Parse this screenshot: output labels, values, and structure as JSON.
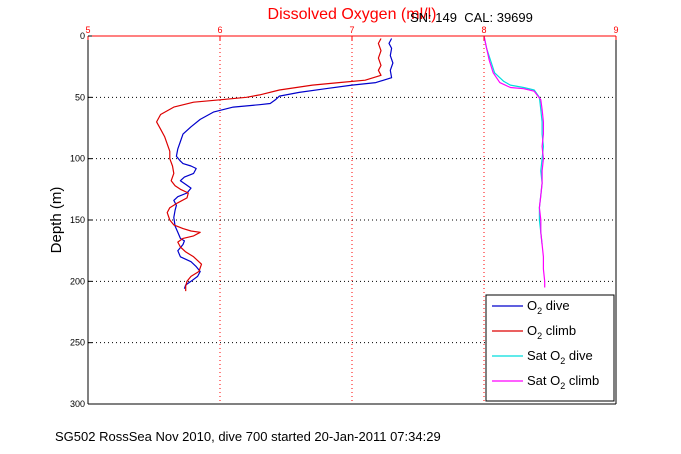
{
  "chart_data": {
    "type": "line",
    "title": "Dissolved Oxygen (ml/l)",
    "title_color": "#ff0000",
    "annotation": "SN: 149  CAL: 39699",
    "ylabel": "Depth (m)",
    "xlabel": "",
    "xlim": [
      5,
      9
    ],
    "ylim": [
      0,
      300
    ],
    "y_reversed": true,
    "x_axis_position": "top",
    "x_axis_color": "#ff0000",
    "x_ticks": [
      "5",
      "6",
      "7",
      "8",
      "9"
    ],
    "y_ticks": [
      "0",
      "50",
      "100",
      "150",
      "200",
      "250",
      "300"
    ],
    "grid": "dotted",
    "legend_position": "bottom-right",
    "series": [
      {
        "name": "O2 dive",
        "legend_main": "O",
        "legend_sub": "2",
        "legend_suffix": " dive",
        "color": "#0000cc",
        "points": [
          [
            7.3,
            2
          ],
          [
            7.28,
            6
          ],
          [
            7.3,
            10
          ],
          [
            7.29,
            16
          ],
          [
            7.31,
            22
          ],
          [
            7.29,
            28
          ],
          [
            7.3,
            34
          ],
          [
            7.18,
            38
          ],
          [
            7.0,
            40
          ],
          [
            6.8,
            43
          ],
          [
            6.6,
            46
          ],
          [
            6.45,
            49
          ],
          [
            6.42,
            52
          ],
          [
            6.38,
            55
          ],
          [
            6.3,
            56
          ],
          [
            6.1,
            58
          ],
          [
            5.95,
            62
          ],
          [
            5.85,
            68
          ],
          [
            5.78,
            74
          ],
          [
            5.72,
            80
          ],
          [
            5.7,
            86
          ],
          [
            5.68,
            92
          ],
          [
            5.67,
            98
          ],
          [
            5.7,
            102
          ],
          [
            5.72,
            104
          ],
          [
            5.78,
            106
          ],
          [
            5.82,
            108
          ],
          [
            5.8,
            112
          ],
          [
            5.73,
            115
          ],
          [
            5.7,
            118
          ],
          [
            5.74,
            121
          ],
          [
            5.78,
            124
          ],
          [
            5.75,
            128
          ],
          [
            5.68,
            131
          ],
          [
            5.65,
            134
          ],
          [
            5.67,
            138
          ],
          [
            5.66,
            142
          ],
          [
            5.65,
            148
          ],
          [
            5.66,
            155
          ],
          [
            5.68,
            160
          ],
          [
            5.7,
            165
          ],
          [
            5.73,
            167
          ],
          [
            5.72,
            170
          ],
          [
            5.68,
            175
          ],
          [
            5.7,
            180
          ],
          [
            5.78,
            184
          ],
          [
            5.82,
            188
          ],
          [
            5.85,
            192
          ],
          [
            5.83,
            196
          ],
          [
            5.78,
            200
          ],
          [
            5.74,
            203
          ],
          [
            5.73,
            206
          ]
        ]
      },
      {
        "name": "O2 climb",
        "legend_main": "O",
        "legend_sub": "2",
        "legend_suffix": " climb",
        "color": "#dd0000",
        "points": [
          [
            7.22,
            2
          ],
          [
            7.2,
            6
          ],
          [
            7.22,
            12
          ],
          [
            7.2,
            18
          ],
          [
            7.22,
            24
          ],
          [
            7.2,
            28
          ],
          [
            7.22,
            32
          ],
          [
            7.1,
            36
          ],
          [
            6.9,
            38
          ],
          [
            6.7,
            40
          ],
          [
            6.45,
            44
          ],
          [
            6.3,
            48
          ],
          [
            6.2,
            50
          ],
          [
            6.0,
            52
          ],
          [
            5.8,
            54
          ],
          [
            5.65,
            58
          ],
          [
            5.55,
            64
          ],
          [
            5.52,
            70
          ],
          [
            5.55,
            76
          ],
          [
            5.58,
            82
          ],
          [
            5.6,
            88
          ],
          [
            5.62,
            94
          ],
          [
            5.62,
            100
          ],
          [
            5.64,
            106
          ],
          [
            5.65,
            112
          ],
          [
            5.63,
            118
          ],
          [
            5.66,
            122
          ],
          [
            5.7,
            125
          ],
          [
            5.76,
            128
          ],
          [
            5.75,
            132
          ],
          [
            5.68,
            136
          ],
          [
            5.62,
            140
          ],
          [
            5.6,
            144
          ],
          [
            5.62,
            150
          ],
          [
            5.65,
            154
          ],
          [
            5.72,
            157
          ],
          [
            5.78,
            159
          ],
          [
            5.85,
            160
          ],
          [
            5.8,
            163
          ],
          [
            5.72,
            165
          ],
          [
            5.68,
            168
          ],
          [
            5.7,
            172
          ],
          [
            5.74,
            176
          ],
          [
            5.8,
            180
          ],
          [
            5.86,
            186
          ],
          [
            5.84,
            192
          ],
          [
            5.78,
            196
          ],
          [
            5.75,
            200
          ],
          [
            5.74,
            204
          ],
          [
            5.74,
            208
          ]
        ]
      },
      {
        "name": "Sat O2 dive",
        "legend_main": "Sat O",
        "legend_sub": "2",
        "legend_suffix": " dive",
        "color": "#00dddd",
        "points": [
          [
            8.0,
            0
          ],
          [
            8.02,
            10
          ],
          [
            8.05,
            20
          ],
          [
            8.08,
            30
          ],
          [
            8.15,
            37
          ],
          [
            8.2,
            40
          ],
          [
            8.3,
            42
          ],
          [
            8.38,
            44
          ],
          [
            8.42,
            50
          ],
          [
            8.43,
            60
          ],
          [
            8.44,
            70
          ],
          [
            8.44,
            80
          ],
          [
            8.45,
            90
          ],
          [
            8.44,
            100
          ],
          [
            8.43,
            110
          ],
          [
            8.44,
            120
          ],
          [
            8.43,
            130
          ],
          [
            8.42,
            140
          ],
          [
            8.42,
            150
          ],
          [
            8.43,
            160
          ],
          [
            8.44,
            170
          ]
        ]
      },
      {
        "name": "Sat O2 climb",
        "legend_main": "Sat O",
        "legend_sub": "2",
        "legend_suffix": " climb",
        "color": "#ff00ff",
        "points": [
          [
            8.0,
            0
          ],
          [
            8.02,
            10
          ],
          [
            8.04,
            20
          ],
          [
            8.07,
            30
          ],
          [
            8.12,
            38
          ],
          [
            8.2,
            42
          ],
          [
            8.3,
            43
          ],
          [
            8.38,
            45
          ],
          [
            8.43,
            52
          ],
          [
            8.44,
            60
          ],
          [
            8.45,
            70
          ],
          [
            8.45,
            80
          ],
          [
            8.44,
            90
          ],
          [
            8.45,
            100
          ],
          [
            8.44,
            110
          ],
          [
            8.44,
            120
          ],
          [
            8.43,
            130
          ],
          [
            8.42,
            140
          ],
          [
            8.43,
            150
          ],
          [
            8.43,
            160
          ],
          [
            8.44,
            170
          ],
          [
            8.45,
            180
          ],
          [
            8.45,
            190
          ],
          [
            8.46,
            200
          ],
          [
            8.46,
            205
          ]
        ]
      }
    ]
  },
  "footer": {
    "caption": "SG502 RossSea Nov 2010, dive 700 started 20-Jan-2011 07:34:29"
  }
}
